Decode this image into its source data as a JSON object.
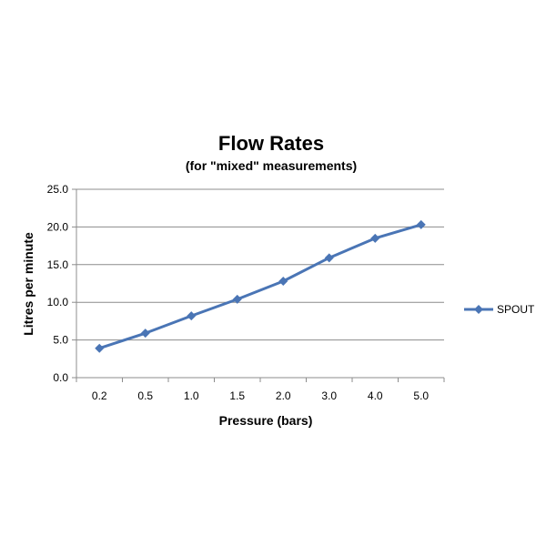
{
  "chart_data": {
    "type": "line",
    "title": "Flow Rates",
    "subtitle": "(for \"mixed\"  measurements)",
    "xlabel": "Pressure (bars)",
    "ylabel": "Litres per minute",
    "categories": [
      "0.2",
      "0.5",
      "1.0",
      "1.5",
      "2.0",
      "3.0",
      "4.0",
      "5.0"
    ],
    "y_ticks": [
      "0.0",
      "5.0",
      "10.0",
      "15.0",
      "20.0",
      "25.0"
    ],
    "ylim": [
      0,
      25
    ],
    "grid": true,
    "legend_position": "right",
    "series": [
      {
        "name": "SPOUT",
        "color": "#4a75b5",
        "marker": "diamond",
        "values": [
          3.9,
          5.9,
          8.2,
          10.4,
          12.8,
          15.9,
          18.5,
          20.3
        ]
      }
    ]
  }
}
